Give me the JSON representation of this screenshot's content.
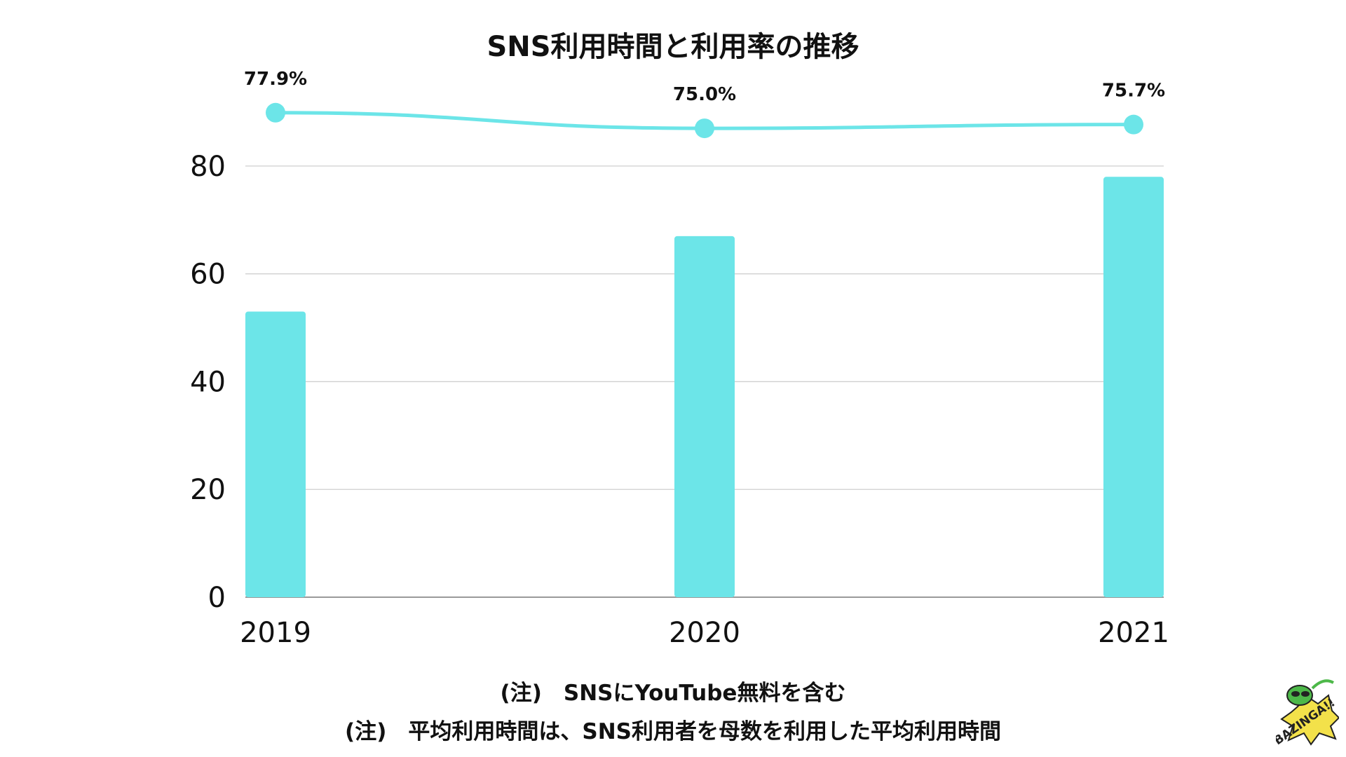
{
  "title": "SNS利用時間と利用率の推移",
  "notes": [
    "(注)　SNSにYouTube無料を含む",
    "(注)　平均利用時間は、SNS利用者を母数を利用した平均利用時間"
  ],
  "logo_text": "BAZINGA!!",
  "chart_data": {
    "type": "bar",
    "title": "SNS利用時間と利用率の推移",
    "categories": [
      "2019",
      "2020",
      "2021"
    ],
    "ylim": [
      0,
      90
    ],
    "yticks": [
      0,
      20,
      40,
      60,
      80
    ],
    "grid": true,
    "series": [
      {
        "type": "bar",
        "values": [
          53,
          67,
          78
        ],
        "color": "#6ce5e8"
      },
      {
        "type": "line",
        "values": [
          77.9,
          75.0,
          75.7
        ],
        "labels": [
          "77.9%",
          "75.0%",
          "75.7%"
        ],
        "color": "#6ce5e8"
      }
    ]
  }
}
